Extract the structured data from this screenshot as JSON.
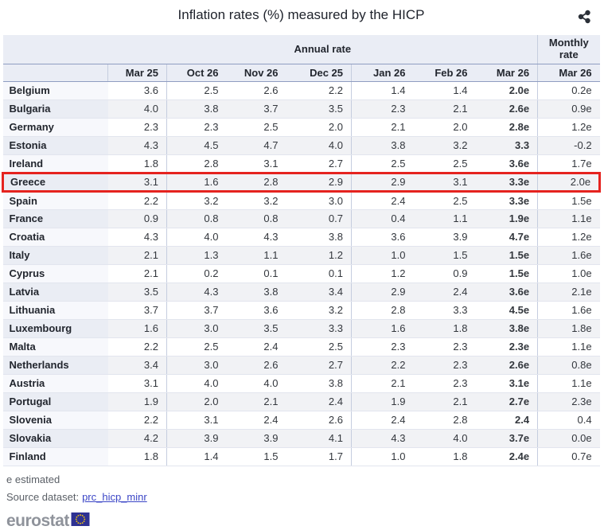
{
  "chart_data": {
    "type": "table",
    "title": "Inflation rates (%) measured by the HICP",
    "column_groups": {
      "annual": "Annual rate",
      "monthly": "Monthly rate"
    },
    "annual_columns": [
      "Mar 25",
      "Oct 26",
      "Nov 26",
      "Dec 25",
      "Jan 26",
      "Feb 26",
      "Mar 26"
    ],
    "monthly_column": "Mar 26",
    "rows": [
      {
        "country": "Belgium",
        "annual": [
          "3.6",
          "2.5",
          "2.6",
          "2.2",
          "1.4",
          "1.4",
          "2.0e"
        ],
        "monthly": "0.2e",
        "highlighted": false
      },
      {
        "country": "Bulgaria",
        "annual": [
          "4.0",
          "3.8",
          "3.7",
          "3.5",
          "2.3",
          "2.1",
          "2.6e"
        ],
        "monthly": "0.9e",
        "highlighted": false
      },
      {
        "country": "Germany",
        "annual": [
          "2.3",
          "2.3",
          "2.5",
          "2.0",
          "2.1",
          "2.0",
          "2.8e"
        ],
        "monthly": "1.2e",
        "highlighted": false
      },
      {
        "country": "Estonia",
        "annual": [
          "4.3",
          "4.5",
          "4.7",
          "4.0",
          "3.8",
          "3.2",
          "3.3"
        ],
        "monthly": "-0.2",
        "highlighted": false
      },
      {
        "country": "Ireland",
        "annual": [
          "1.8",
          "2.8",
          "3.1",
          "2.7",
          "2.5",
          "2.5",
          "3.6e"
        ],
        "monthly": "1.7e",
        "highlighted": false
      },
      {
        "country": "Greece",
        "annual": [
          "3.1",
          "1.6",
          "2.8",
          "2.9",
          "2.9",
          "3.1",
          "3.3e"
        ],
        "monthly": "2.0e",
        "highlighted": true
      },
      {
        "country": "Spain",
        "annual": [
          "2.2",
          "3.2",
          "3.2",
          "3.0",
          "2.4",
          "2.5",
          "3.3e"
        ],
        "monthly": "1.5e",
        "highlighted": false
      },
      {
        "country": "France",
        "annual": [
          "0.9",
          "0.8",
          "0.8",
          "0.7",
          "0.4",
          "1.1",
          "1.9e"
        ],
        "monthly": "1.1e",
        "highlighted": false
      },
      {
        "country": "Croatia",
        "annual": [
          "4.3",
          "4.0",
          "4.3",
          "3.8",
          "3.6",
          "3.9",
          "4.7e"
        ],
        "monthly": "1.2e",
        "highlighted": false
      },
      {
        "country": "Italy",
        "annual": [
          "2.1",
          "1.3",
          "1.1",
          "1.2",
          "1.0",
          "1.5",
          "1.5e"
        ],
        "monthly": "1.6e",
        "highlighted": false
      },
      {
        "country": "Cyprus",
        "annual": [
          "2.1",
          "0.2",
          "0.1",
          "0.1",
          "1.2",
          "0.9",
          "1.5e"
        ],
        "monthly": "1.0e",
        "highlighted": false
      },
      {
        "country": "Latvia",
        "annual": [
          "3.5",
          "4.3",
          "3.8",
          "3.4",
          "2.9",
          "2.4",
          "3.6e"
        ],
        "monthly": "2.1e",
        "highlighted": false
      },
      {
        "country": "Lithuania",
        "annual": [
          "3.7",
          "3.7",
          "3.6",
          "3.2",
          "2.8",
          "3.3",
          "4.5e"
        ],
        "monthly": "1.6e",
        "highlighted": false
      },
      {
        "country": "Luxembourg",
        "annual": [
          "1.6",
          "3.0",
          "3.5",
          "3.3",
          "1.6",
          "1.8",
          "3.8e"
        ],
        "monthly": "1.8e",
        "highlighted": false
      },
      {
        "country": "Malta",
        "annual": [
          "2.2",
          "2.5",
          "2.4",
          "2.5",
          "2.3",
          "2.3",
          "2.3e"
        ],
        "monthly": "1.1e",
        "highlighted": false
      },
      {
        "country": "Netherlands",
        "annual": [
          "3.4",
          "3.0",
          "2.6",
          "2.7",
          "2.2",
          "2.3",
          "2.6e"
        ],
        "monthly": "0.8e",
        "highlighted": false
      },
      {
        "country": "Austria",
        "annual": [
          "3.1",
          "4.0",
          "4.0",
          "3.8",
          "2.1",
          "2.3",
          "3.1e"
        ],
        "monthly": "1.1e",
        "highlighted": false
      },
      {
        "country": "Portugal",
        "annual": [
          "1.9",
          "2.0",
          "2.1",
          "2.4",
          "1.9",
          "2.1",
          "2.7e"
        ],
        "monthly": "2.3e",
        "highlighted": false
      },
      {
        "country": "Slovenia",
        "annual": [
          "2.2",
          "3.1",
          "2.4",
          "2.6",
          "2.4",
          "2.8",
          "2.4"
        ],
        "monthly": "0.4",
        "highlighted": false
      },
      {
        "country": "Slovakia",
        "annual": [
          "4.2",
          "3.9",
          "3.9",
          "4.1",
          "4.3",
          "4.0",
          "3.7e"
        ],
        "monthly": "0.0e",
        "highlighted": false
      },
      {
        "country": "Finland",
        "annual": [
          "1.8",
          "1.4",
          "1.5",
          "1.7",
          "1.0",
          "1.8",
          "2.4e"
        ],
        "monthly": "0.7e",
        "highlighted": false
      }
    ]
  },
  "footer": {
    "footnote": "e estimated",
    "source_label": "Source dataset:",
    "source_link_text": "prc_hicp_minr",
    "logo_text": "eurostat"
  },
  "colors": {
    "highlight_border": "#e5231f",
    "link": "#3a45c6",
    "header_bg": "#eaedf5",
    "flag_blue": "#2e3192",
    "star_yellow": "#ffcc00"
  }
}
